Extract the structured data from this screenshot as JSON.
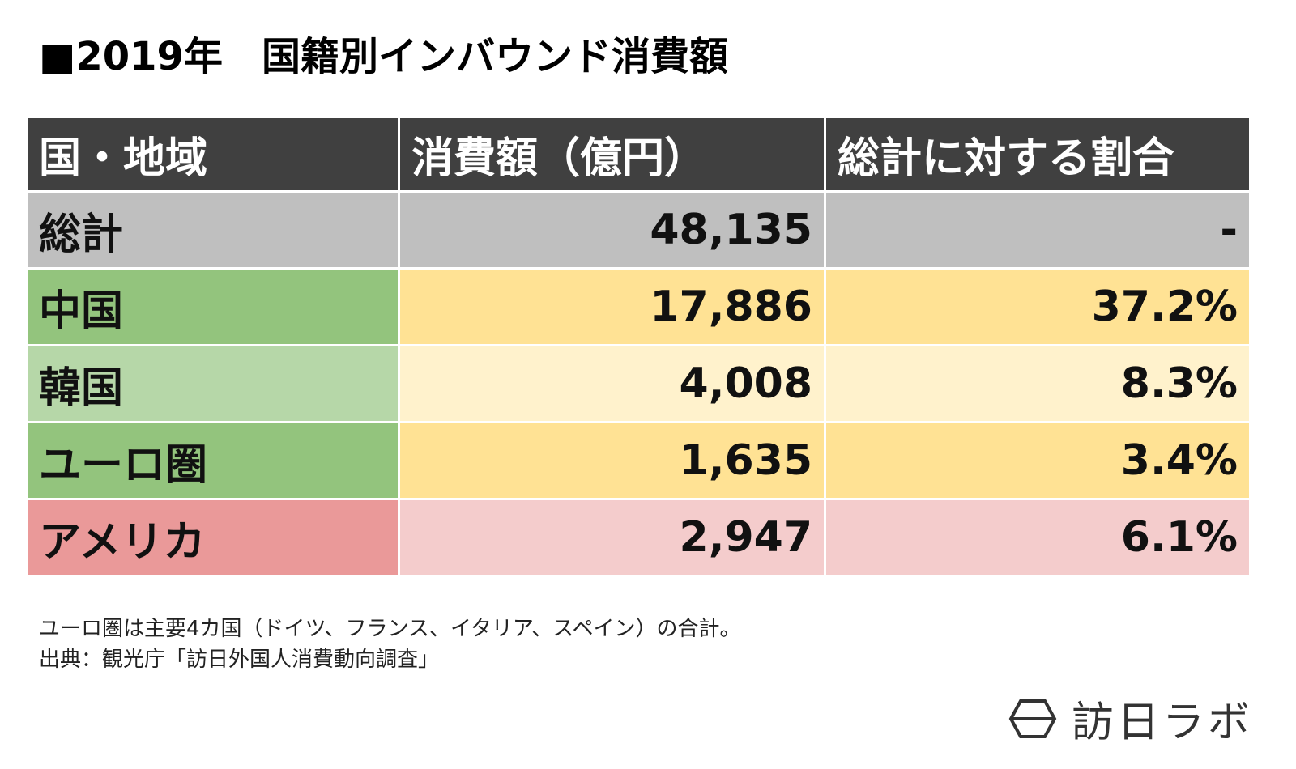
{
  "title": "■2019年　国籍別インバウンド消費額",
  "table": {
    "header": [
      "国・地域",
      "消費額（億円）",
      "総計に対する割合"
    ],
    "rows": [
      [
        "総計",
        "48,135",
        "-"
      ],
      [
        "中国",
        "17,886",
        "37.2%"
      ],
      [
        "韓国",
        "4,008",
        "8.3%"
      ],
      [
        "ユーロ圏",
        "1,635",
        "3.4%"
      ],
      [
        "アメリカ",
        "2,947",
        "6.1%"
      ]
    ]
  },
  "notes": [
    "ユーロ圏は主要4カ国（ドイツ、フランス、イタリア、スペイン）の合計。",
    "出典：観光庁「訪日外国人消費動向調査」"
  ],
  "logo": "訪日ラボ"
}
